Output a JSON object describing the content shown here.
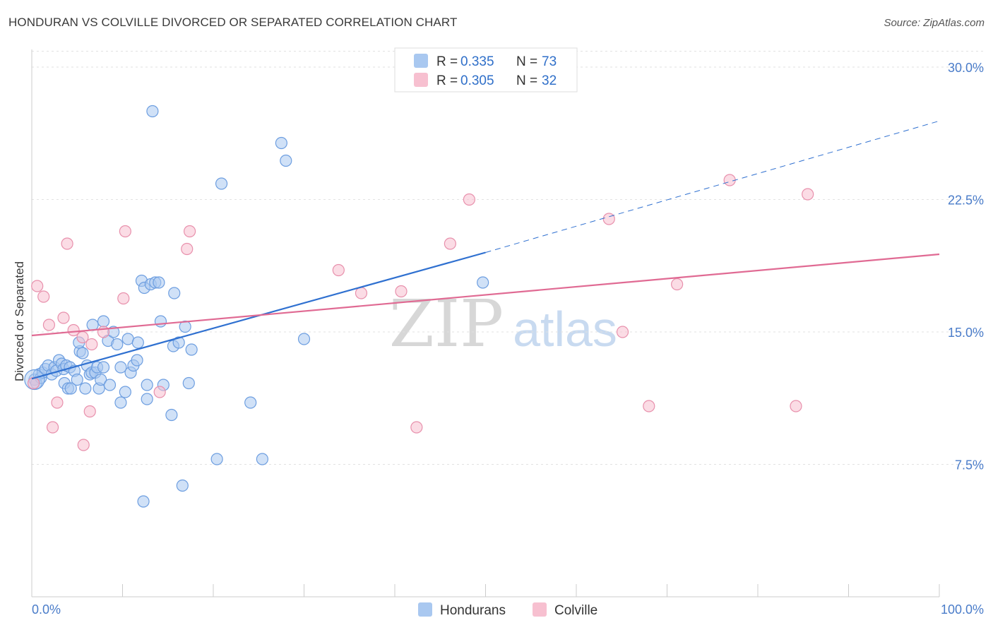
{
  "header": {
    "title": "HONDURAN VS COLVILLE DIVORCED OR SEPARATED CORRELATION CHART",
    "source": "Source: ZipAtlas.com"
  },
  "watermark": {
    "zip": "ZIP",
    "atlas": "atlas"
  },
  "legend": {
    "rows": [
      {
        "r_label": "R =",
        "r_value": "0.335",
        "n_label": "N =",
        "n_value": "73",
        "color": "#a9c8f0",
        "stroke": "#6d9ee0"
      },
      {
        "r_label": "R =",
        "r_value": "0.305",
        "n_label": "N =",
        "n_value": "32",
        "color": "#f7c0d0",
        "stroke": "#e890ac"
      }
    ]
  },
  "bottom_legend": [
    {
      "label": "Hondurans",
      "color": "#a9c8f0",
      "stroke": "#6d9ee0"
    },
    {
      "label": "Colville",
      "color": "#f7c0d0",
      "stroke": "#e890ac"
    }
  ],
  "chart_data": {
    "type": "scatter",
    "title": "HONDURAN VS COLVILLE DIVORCED OR SEPARATED CORRELATION CHART",
    "xlabel": "",
    "ylabel": "Divorced or Separated",
    "xlim": [
      0,
      100
    ],
    "ylim": [
      0,
      31
    ],
    "x_tick_labels": [
      "0.0%",
      "100.0%"
    ],
    "y_ticks": [
      7.5,
      15.0,
      22.5,
      30.0
    ],
    "y_tick_labels": [
      "7.5%",
      "15.0%",
      "22.5%",
      "30.0%"
    ],
    "grid": true,
    "series": [
      {
        "name": "Hondurans",
        "color": "#6d9ee0",
        "fill": "#a9c8f0",
        "points": [
          [
            0.3,
            12.3
          ],
          [
            0.5,
            12.1
          ],
          [
            0.8,
            12.6
          ],
          [
            1.0,
            12.4
          ],
          [
            1.2,
            12.7
          ],
          [
            1.5,
            12.9
          ],
          [
            1.8,
            13.1
          ],
          [
            2.2,
            12.6
          ],
          [
            2.5,
            13.0
          ],
          [
            2.7,
            12.8
          ],
          [
            3.0,
            13.4
          ],
          [
            3.3,
            13.2
          ],
          [
            3.5,
            12.9
          ],
          [
            3.8,
            13.1
          ],
          [
            4.2,
            13.0
          ],
          [
            3.6,
            12.1
          ],
          [
            4.0,
            11.8
          ],
          [
            4.3,
            11.8
          ],
          [
            4.7,
            12.8
          ],
          [
            5.0,
            12.3
          ],
          [
            5.3,
            13.9
          ],
          [
            5.6,
            13.8
          ],
          [
            5.2,
            14.4
          ],
          [
            5.9,
            11.8
          ],
          [
            6.1,
            13.1
          ],
          [
            6.4,
            12.6
          ],
          [
            6.6,
            12.7
          ],
          [
            7.0,
            12.7
          ],
          [
            7.2,
            13.0
          ],
          [
            7.4,
            11.8
          ],
          [
            7.6,
            12.3
          ],
          [
            7.9,
            13.0
          ],
          [
            6.7,
            15.4
          ],
          [
            7.9,
            15.6
          ],
          [
            8.4,
            14.5
          ],
          [
            8.6,
            12.0
          ],
          [
            9.0,
            15.0
          ],
          [
            9.4,
            14.3
          ],
          [
            9.8,
            13.0
          ],
          [
            9.8,
            11.0
          ],
          [
            10.3,
            11.6
          ],
          [
            10.6,
            14.6
          ],
          [
            10.9,
            12.7
          ],
          [
            11.2,
            13.1
          ],
          [
            11.6,
            13.4
          ],
          [
            11.7,
            14.4
          ],
          [
            12.1,
            17.9
          ],
          [
            12.4,
            17.5
          ],
          [
            12.7,
            12.0
          ],
          [
            13.1,
            17.7
          ],
          [
            13.6,
            17.8
          ],
          [
            14.0,
            17.8
          ],
          [
            14.2,
            15.6
          ],
          [
            14.5,
            12.0
          ],
          [
            15.4,
            10.3
          ],
          [
            15.6,
            14.2
          ],
          [
            15.7,
            17.2
          ],
          [
            16.2,
            14.4
          ],
          [
            16.6,
            6.3
          ],
          [
            16.9,
            15.3
          ],
          [
            17.3,
            12.1
          ],
          [
            17.6,
            14.0
          ],
          [
            20.4,
            7.8
          ],
          [
            20.9,
            23.4
          ],
          [
            12.7,
            11.2
          ],
          [
            24.1,
            11.0
          ],
          [
            25.4,
            7.8
          ],
          [
            13.3,
            27.5
          ],
          [
            27.5,
            25.7
          ],
          [
            28.0,
            24.7
          ],
          [
            30.0,
            14.6
          ],
          [
            49.7,
            17.8
          ],
          [
            12.3,
            5.4
          ]
        ]
      },
      {
        "name": "Colville",
        "color": "#e890ac",
        "fill": "#f7c0d0",
        "points": [
          [
            0.2,
            12.1
          ],
          [
            0.6,
            17.6
          ],
          [
            1.3,
            17.0
          ],
          [
            1.9,
            15.4
          ],
          [
            2.3,
            9.6
          ],
          [
            2.8,
            11.0
          ],
          [
            3.5,
            15.8
          ],
          [
            3.9,
            20.0
          ],
          [
            4.6,
            15.1
          ],
          [
            5.6,
            14.7
          ],
          [
            5.7,
            8.6
          ],
          [
            6.4,
            10.5
          ],
          [
            6.6,
            14.3
          ],
          [
            7.9,
            15.0
          ],
          [
            10.1,
            16.9
          ],
          [
            10.3,
            20.7
          ],
          [
            14.1,
            11.6
          ],
          [
            17.1,
            19.7
          ],
          [
            17.4,
            20.7
          ],
          [
            33.8,
            18.5
          ],
          [
            36.3,
            17.2
          ],
          [
            40.7,
            17.3
          ],
          [
            42.4,
            9.6
          ],
          [
            46.1,
            20.0
          ],
          [
            48.2,
            22.5
          ],
          [
            63.6,
            21.4
          ],
          [
            65.1,
            15.0
          ],
          [
            68.0,
            10.8
          ],
          [
            71.1,
            17.7
          ],
          [
            76.9,
            23.6
          ],
          [
            84.2,
            10.8
          ],
          [
            85.5,
            22.8
          ]
        ]
      }
    ],
    "trend_lines": [
      {
        "series": "Hondurans",
        "from": [
          0,
          12.35
        ],
        "to": [
          50,
          19.5
        ],
        "dashed_to": [
          100,
          26.95
        ]
      },
      {
        "series": "Colville",
        "from": [
          0,
          14.8
        ],
        "to": [
          100,
          19.4
        ]
      }
    ]
  }
}
